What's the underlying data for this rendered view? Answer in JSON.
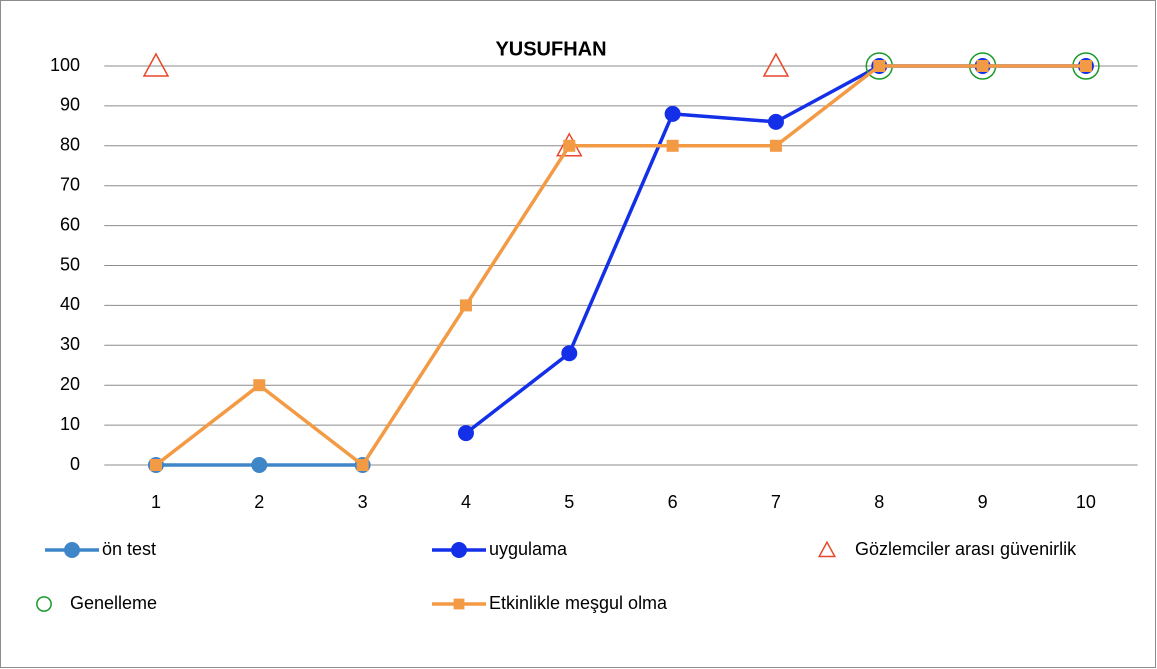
{
  "chart_data": {
    "type": "line",
    "title": "YUSUFHAN",
    "categories": [
      "1",
      "2",
      "3",
      "4",
      "5",
      "6",
      "7",
      "8",
      "9",
      "10"
    ],
    "ylim": [
      0,
      100
    ],
    "yticks": [
      0,
      10,
      20,
      30,
      40,
      50,
      60,
      70,
      80,
      90,
      100
    ],
    "grid": true,
    "series": [
      {
        "name": "ön test",
        "color": "#3f86c8",
        "marker": "circle",
        "line": true,
        "values": [
          0,
          0,
          0,
          null,
          null,
          null,
          null,
          null,
          null,
          null
        ]
      },
      {
        "name": "uygulama",
        "color": "#1330e8",
        "marker": "circle",
        "line": true,
        "values": [
          null,
          null,
          null,
          8,
          28,
          88,
          86,
          100,
          100,
          100
        ]
      },
      {
        "name": "Gözlemciler arası güvenirlik",
        "color": "#e8472a",
        "marker": "triangle",
        "line": false,
        "values": [
          100,
          null,
          null,
          null,
          80,
          null,
          100,
          null,
          null,
          null
        ]
      },
      {
        "name": "Genelleme",
        "color": "#1a9a2a",
        "marker": "ring",
        "line": false,
        "values": [
          null,
          null,
          null,
          null,
          null,
          null,
          null,
          100,
          100,
          100
        ]
      },
      {
        "name": "Etkinlikle meşgul olma",
        "color": "#f39a45",
        "marker": "square",
        "line": true,
        "values": [
          0,
          20,
          0,
          40,
          80,
          80,
          80,
          100,
          100,
          100
        ]
      }
    ]
  }
}
